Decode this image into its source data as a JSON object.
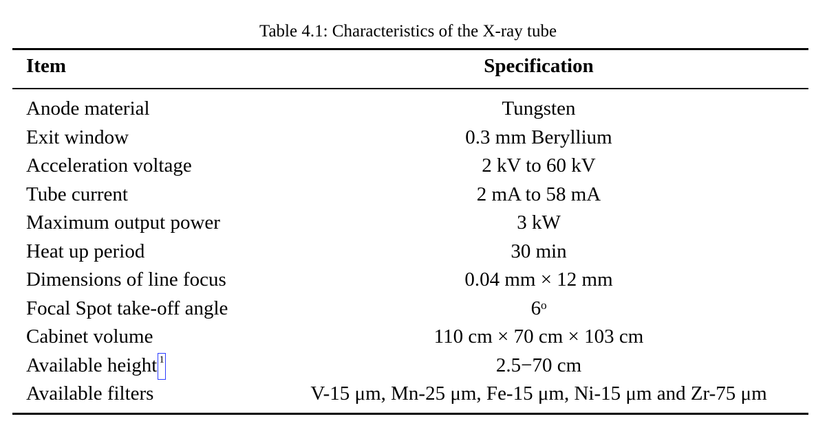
{
  "caption": "Table 4.1: Characteristics of the X-ray tube",
  "table": {
    "headers": [
      "Item",
      "Specification"
    ],
    "rows": [
      {
        "item": "Anode material",
        "spec": "Tungsten"
      },
      {
        "item": "Exit window",
        "spec": "0.3 mm Beryllium"
      },
      {
        "item": "Acceleration voltage",
        "spec": "2 kV to 60 kV"
      },
      {
        "item": "Tube current",
        "spec": "2 mA to 58 mA"
      },
      {
        "item": "Maximum output power",
        "spec": "3 kW"
      },
      {
        "item": "Heat up period",
        "spec": "30 min"
      },
      {
        "item": "Dimensions of line focus",
        "spec": "0.04 mm × 12 mm"
      },
      {
        "item": "Focal Spot take-off angle",
        "spec": "6ᵒ"
      },
      {
        "item": "Cabinet volume",
        "spec": "110 cm × 70 cm × 103 cm"
      },
      {
        "item": "Available height",
        "spec": "2.5−70 cm",
        "footnote": "1"
      },
      {
        "item": "Available filters",
        "spec": "V-15 μm, Mn-25 μm, Fe-15 μm, Ni-15 μm and Zr-75 μm"
      }
    ]
  }
}
